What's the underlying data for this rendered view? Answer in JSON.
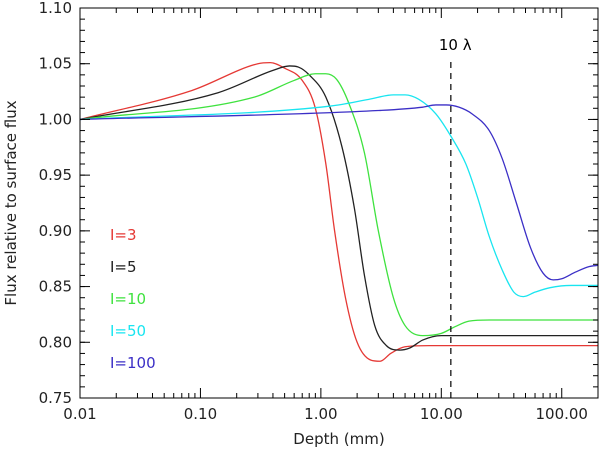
{
  "chart_data": {
    "type": "line",
    "xscale": "log",
    "xlabel": "Depth (mm)",
    "ylabel": "Flux relative to surface flux",
    "xlim": [
      0.01,
      200
    ],
    "ylim": [
      0.75,
      1.1
    ],
    "xticks": [
      {
        "value": 0.01,
        "label": "0.01"
      },
      {
        "value": 0.1,
        "label": "0.10"
      },
      {
        "value": 1,
        "label": "1.00"
      },
      {
        "value": 10,
        "label": "10.00"
      },
      {
        "value": 100,
        "label": "100.00"
      }
    ],
    "yticks": [
      {
        "value": 0.75,
        "label": "0.75"
      },
      {
        "value": 0.8,
        "label": "0.80"
      },
      {
        "value": 0.85,
        "label": "0.85"
      },
      {
        "value": 0.9,
        "label": "0.90"
      },
      {
        "value": 0.95,
        "label": "0.95"
      },
      {
        "value": 1.0,
        "label": "1.00"
      },
      {
        "value": 1.05,
        "label": "1.05"
      },
      {
        "value": 1.1,
        "label": "1.10"
      }
    ],
    "annotation": {
      "x": 12,
      "label": "10 λ",
      "style": "dashed"
    },
    "series": [
      {
        "name": "I=3",
        "color": "#e53935",
        "x": [
          0.01,
          0.085,
          0.3,
          0.38,
          0.5,
          0.7,
          0.9,
          1.1,
          1.3,
          1.6,
          2.0,
          2.6,
          3.1,
          3.8,
          5,
          8,
          15,
          50,
          200
        ],
        "y": [
          1.0,
          1.026,
          1.05,
          1.051,
          1.046,
          1.035,
          1.01,
          0.96,
          0.9,
          0.84,
          0.8,
          0.784,
          0.783,
          0.79,
          0.796,
          0.797,
          0.797,
          0.797,
          0.797
        ]
      },
      {
        "name": "I=5",
        "color": "#222222",
        "x": [
          0.01,
          0.14,
          0.4,
          0.55,
          0.65,
          0.8,
          1.1,
          1.5,
          1.9,
          2.3,
          2.8,
          3.5,
          4.5,
          5.5,
          7,
          10,
          20,
          200
        ],
        "y": [
          1.0,
          1.024,
          1.044,
          1.048,
          1.047,
          1.04,
          1.02,
          0.975,
          0.92,
          0.86,
          0.815,
          0.797,
          0.793,
          0.795,
          0.802,
          0.806,
          0.806,
          0.806
        ]
      },
      {
        "name": "I=10",
        "color": "#3fe23f",
        "x": [
          0.01,
          0.28,
          0.6,
          0.9,
          1.1,
          1.35,
          1.7,
          2.3,
          3.0,
          4.0,
          5.0,
          7.0,
          10,
          13,
          17,
          25,
          200
        ],
        "y": [
          1.0,
          1.02,
          1.035,
          1.041,
          1.041,
          1.036,
          1.015,
          0.97,
          0.9,
          0.84,
          0.815,
          0.806,
          0.808,
          0.814,
          0.819,
          0.82,
          0.82
        ]
      },
      {
        "name": "I=50",
        "color": "#19e5f0",
        "x": [
          0.01,
          1.2,
          2.5,
          4.0,
          5.0,
          6.5,
          9,
          12,
          16,
          20,
          25,
          32,
          40,
          48,
          60,
          80,
          120,
          200
        ],
        "y": [
          1.0,
          1.012,
          1.018,
          1.022,
          1.022,
          1.018,
          1.005,
          0.985,
          0.96,
          0.93,
          0.895,
          0.865,
          0.845,
          0.841,
          0.845,
          0.849,
          0.851,
          0.851
        ]
      },
      {
        "name": "I=100",
        "color": "#3b2fc6",
        "x": [
          0.01,
          3,
          7,
          9,
          11,
          14,
          18,
          25,
          32,
          42,
          55,
          70,
          85,
          100,
          130,
          170,
          200
        ],
        "y": [
          1.0,
          1.008,
          1.011,
          1.013,
          1.013,
          1.011,
          1.005,
          0.99,
          0.965,
          0.925,
          0.885,
          0.862,
          0.856,
          0.857,
          0.863,
          0.868,
          0.869
        ]
      }
    ]
  }
}
